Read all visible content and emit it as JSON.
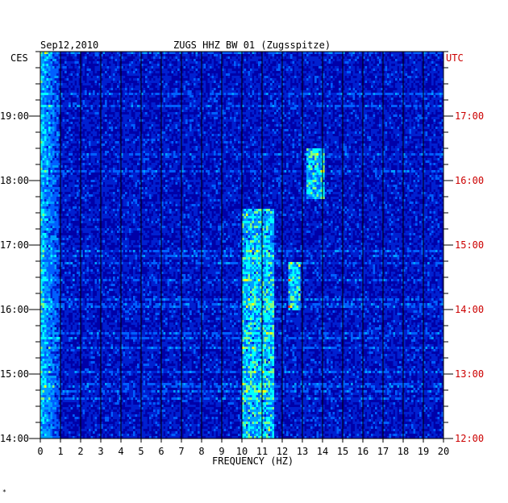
{
  "chart_data": {
    "type": "heatmap",
    "title": "ZUGS HHZ BW 01 (Zugsspitze)",
    "date": "Sep12,2010",
    "xlabel": "FREQUENCY (HZ)",
    "left_timezone": "CES",
    "right_timezone": "UTC",
    "x_ticks": [
      "0",
      "1",
      "2",
      "3",
      "4",
      "5",
      "6",
      "7",
      "8",
      "9",
      "10",
      "11",
      "12",
      "13",
      "14",
      "15",
      "16",
      "17",
      "18",
      "19",
      "20"
    ],
    "xlim": [
      0,
      20
    ],
    "left_time_labels": [
      "19:00",
      "18:00",
      "17:00",
      "16:00",
      "15:00",
      "14:00"
    ],
    "right_time_labels": [
      "17:00",
      "16:00",
      "15:00",
      "14:00",
      "13:00",
      "12:00"
    ],
    "time_range_cest": [
      "14:00",
      "19:52"
    ],
    "colors": {
      "low": "#0000a0",
      "mid": "#0060ff",
      "high": "#00ffff",
      "peak": "#ffff00",
      "max": "#ff4000",
      "right_axis_text": "#cc0000"
    },
    "features": [
      {
        "desc": "broadband energy near 0-1 Hz",
        "freq": [
          0,
          1
        ]
      },
      {
        "desc": "strong bands 10-11.5 Hz",
        "freq": [
          10,
          11.5
        ],
        "time": [
          "14:00",
          "17:35"
        ]
      },
      {
        "desc": "band near 12.5 Hz",
        "freq": [
          12.3,
          12.8
        ],
        "time": [
          "16:00",
          "16:45"
        ]
      },
      {
        "desc": "band near 13.5 Hz",
        "freq": [
          13.2,
          14.0
        ],
        "time": [
          "17:45",
          "18:30"
        ]
      }
    ],
    "corner_mark": "*"
  }
}
